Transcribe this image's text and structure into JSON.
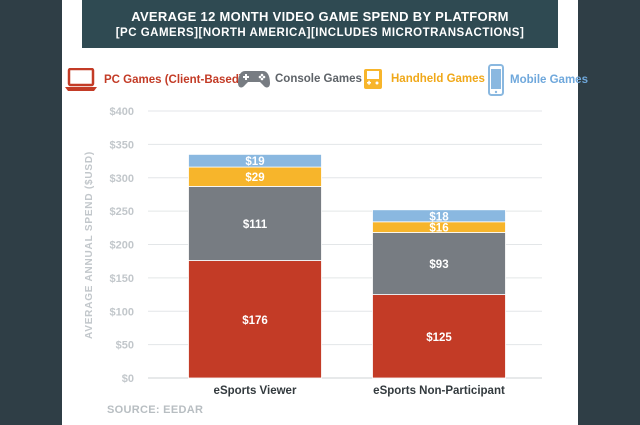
{
  "header": {
    "title": "AVERAGE 12 MONTH VIDEO GAME SPEND BY PLATFORM",
    "subtitle": "[PC GAMERS][NORTH AMERICA][INCLUDES MICROTRANSACTIONS]"
  },
  "legend": [
    {
      "label": "PC Games (Client-Based)",
      "color": "#c33b26",
      "icon": "laptop-icon"
    },
    {
      "label": "Console Games",
      "color": "#777c82",
      "icon": "gamepad-icon"
    },
    {
      "label": "Handheld Games",
      "color": "#f7b52b",
      "icon": "handheld-icon"
    },
    {
      "label": "Mobile Games",
      "color": "#8ab8e0",
      "icon": "phone-icon"
    }
  ],
  "source": "SOURCE: EEDAR",
  "chart_data": {
    "type": "bar",
    "stacked": true,
    "title": "AVERAGE 12 MONTH VIDEO GAME SPEND BY PLATFORM",
    "ylabel": "AVERAGE ANNUAL SPEND ($USD)",
    "xlabel": "",
    "ylim": [
      0,
      400
    ],
    "yticks": [
      "$0",
      "$50",
      "$100",
      "$150",
      "$200",
      "$250",
      "$300",
      "$350",
      "$400"
    ],
    "grid": true,
    "legend_position": "top",
    "categories": [
      "eSports Viewer",
      "eSports Non-Participant"
    ],
    "series": [
      {
        "name": "PC Games (Client-Based)",
        "color": "#c33b26",
        "values": [
          176,
          125
        ],
        "labels": [
          "$176",
          "$125"
        ]
      },
      {
        "name": "Console Games",
        "color": "#777c82",
        "values": [
          111,
          93
        ],
        "labels": [
          "$111",
          "$93"
        ]
      },
      {
        "name": "Handheld Games",
        "color": "#f7b52b",
        "values": [
          29,
          16
        ],
        "labels": [
          "$29",
          "$16"
        ]
      },
      {
        "name": "Mobile Games",
        "color": "#8ab8e0",
        "values": [
          19,
          18
        ],
        "labels": [
          "$19",
          "$18"
        ]
      }
    ]
  }
}
